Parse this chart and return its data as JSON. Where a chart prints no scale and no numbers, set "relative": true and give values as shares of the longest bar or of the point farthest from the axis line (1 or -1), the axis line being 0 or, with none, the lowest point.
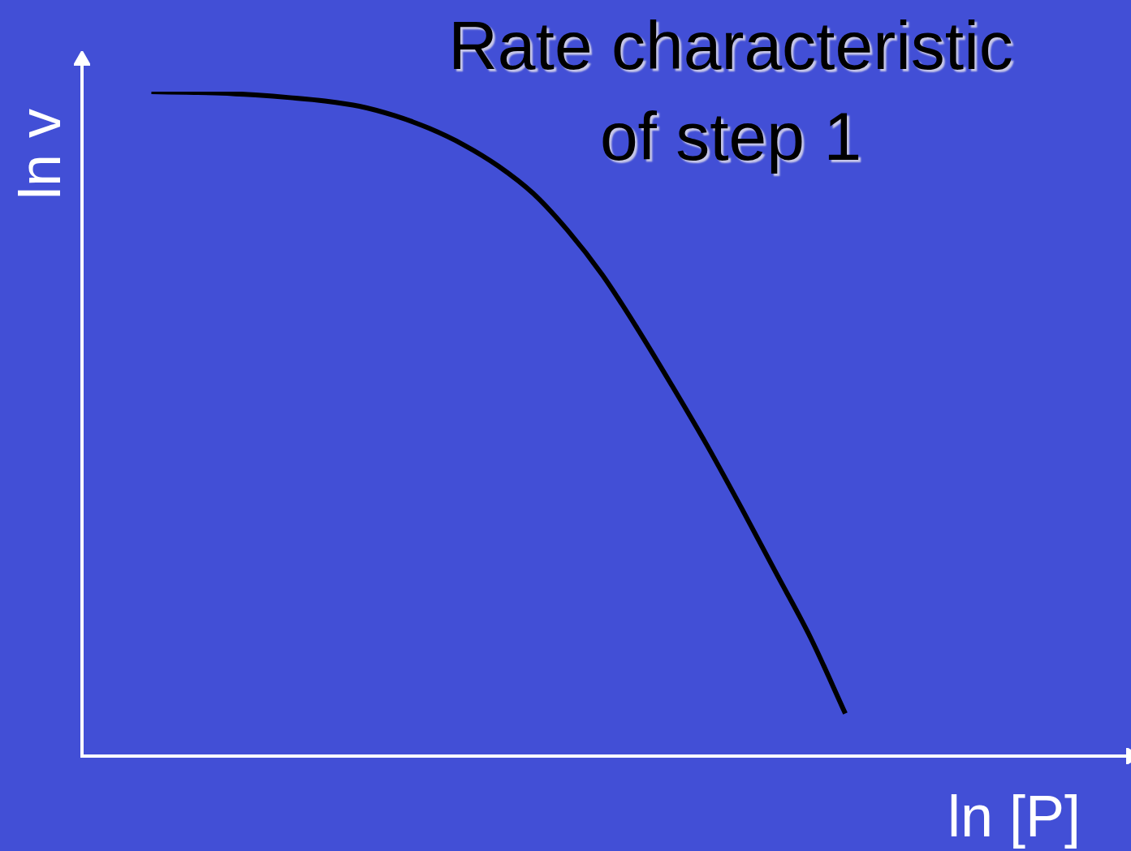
{
  "chart_data": {
    "type": "line",
    "title": "Rate characteristic\nof step 1",
    "xlabel": "ln [P]",
    "ylabel": "ln v",
    "relative": true,
    "grid": false,
    "legend": false,
    "tick_labels": false,
    "marker": "none",
    "line_style": "solid",
    "categories": [
      null,
      null,
      null,
      null,
      null,
      null,
      null,
      null,
      null,
      null,
      null,
      null,
      null,
      null,
      null,
      null,
      null,
      null,
      null,
      null,
      null,
      null,
      null,
      null,
      null,
      null,
      null,
      null,
      null,
      null,
      null
    ],
    "series": [
      {
        "color": "#000000",
        "values": [
          null,
          null,
          1.0,
          0.999,
          0.998,
          0.995,
          0.991,
          0.986,
          0.978,
          0.964,
          0.945,
          0.92,
          0.888,
          0.847,
          0.791,
          0.724,
          0.644,
          0.558,
          0.469,
          0.374,
          0.276,
          0.178,
          0.064,
          null,
          null,
          null,
          null,
          null,
          null,
          null,
          null
        ]
      }
    ]
  }
}
